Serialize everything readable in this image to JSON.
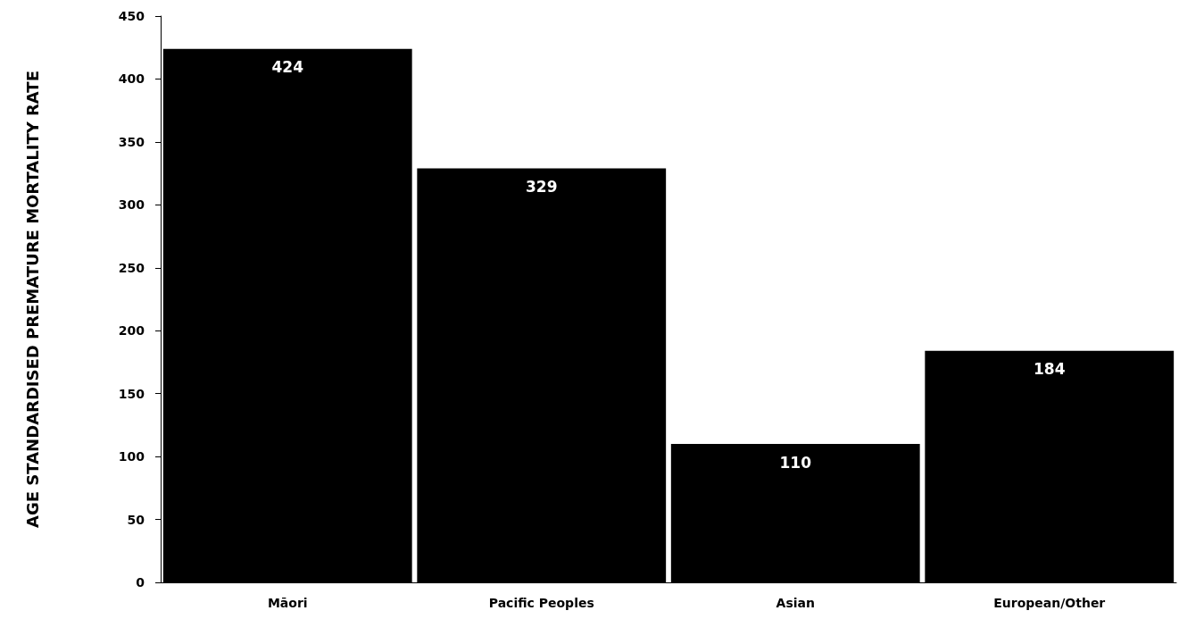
{
  "chart_data": {
    "type": "bar",
    "ylabel": "AGE STANDARDISED PREMATURE MORTALITY RATE",
    "categories": [
      "Māori",
      "Pacific Peoples",
      "Asian",
      "European/Other"
    ],
    "values": [
      424,
      329,
      110,
      184
    ],
    "color": "#000000",
    "ylim": [
      0,
      450
    ],
    "yticks": [
      0,
      50,
      100,
      150,
      200,
      250,
      300,
      350,
      400,
      450
    ],
    "grid": false,
    "data_labels": true
  }
}
